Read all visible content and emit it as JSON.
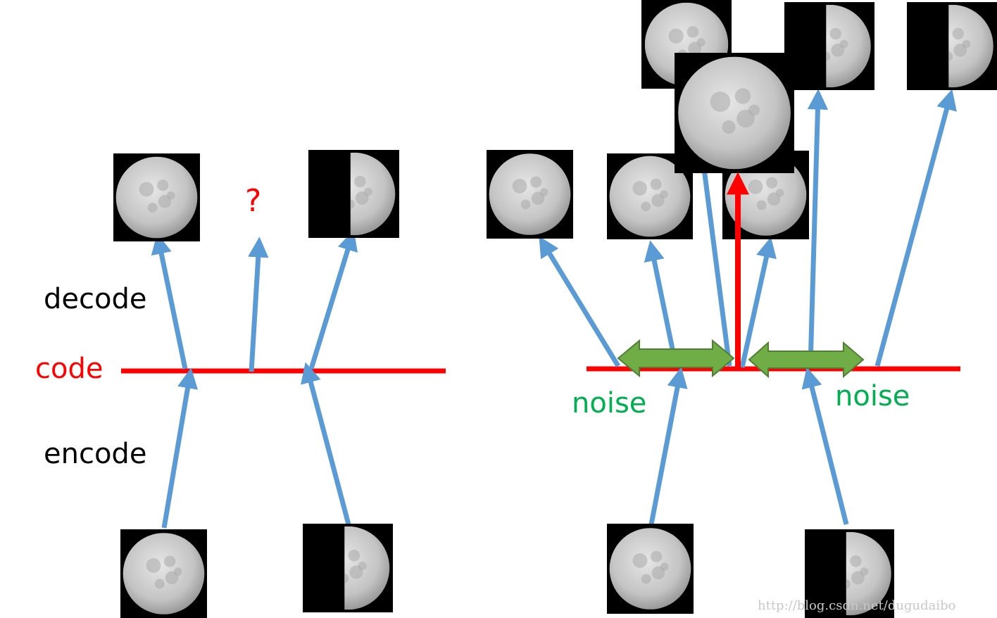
{
  "labels": {
    "decode": "decode",
    "encode": "encode",
    "code": "code",
    "question": "?",
    "noise_left": "noise",
    "noise_right": "noise"
  },
  "watermark": "http://blog.csdn.net/dugudaibo",
  "colors": {
    "arrow": "#5b9bd5",
    "code_line": "#ff0000",
    "noise": "#00b050",
    "noise_arrow": "#70ad47",
    "noise_arrow_stroke": "#507e32",
    "text": "#000000",
    "moon_bg": "#000000",
    "moon_light": "#c8c8c8",
    "watermark": "#c8c8c8"
  },
  "moons": [
    {
      "id": "left-output-full",
      "phase": "full"
    },
    {
      "id": "left-output-half",
      "phase": "half"
    },
    {
      "id": "left-input-full",
      "phase": "full"
    },
    {
      "id": "left-input-half",
      "phase": "half"
    },
    {
      "id": "right-output-full-1",
      "phase": "full"
    },
    {
      "id": "right-output-full-2",
      "phase": "full"
    },
    {
      "id": "right-output-full-3",
      "phase": "full"
    },
    {
      "id": "right-output-gibbous-top",
      "phase": "gibbous"
    },
    {
      "id": "right-output-half-2",
      "phase": "half"
    },
    {
      "id": "right-output-half-3",
      "phase": "half"
    },
    {
      "id": "right-output-gibbous-big",
      "phase": "gibbous-big"
    },
    {
      "id": "right-input-full",
      "phase": "full"
    },
    {
      "id": "right-input-half",
      "phase": "half"
    }
  ]
}
